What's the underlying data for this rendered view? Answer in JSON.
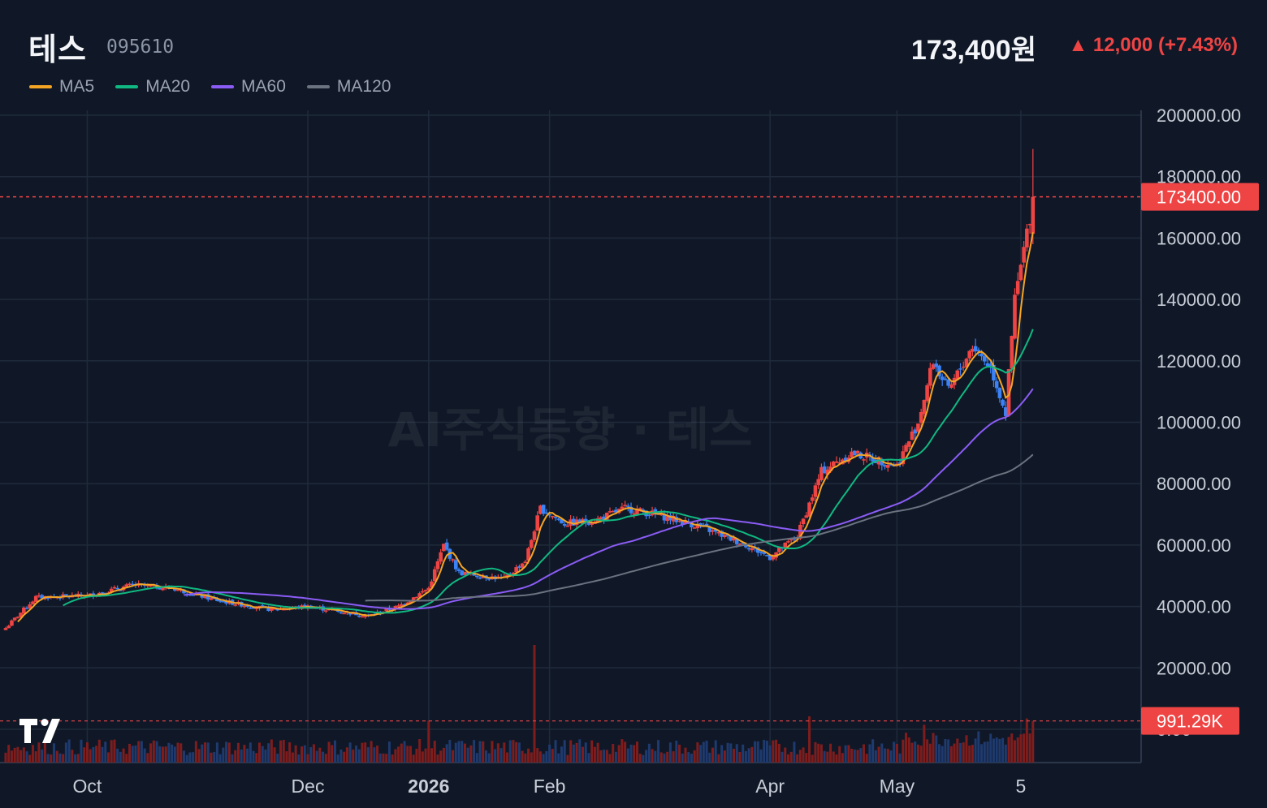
{
  "header": {
    "name": "테스",
    "code": "095610",
    "price": "173,400원",
    "change": "▲ 12,000 (+7.43%)"
  },
  "legend": [
    {
      "label": "MA5",
      "color": "#f5a524"
    },
    {
      "label": "MA20",
      "color": "#10b981"
    },
    {
      "label": "MA60",
      "color": "#8b5cf6"
    },
    {
      "label": "MA120",
      "color": "#6b7280"
    }
  ],
  "watermark": "AI주식동향 · 테스",
  "colors": {
    "background": "#101827",
    "grid": "#1f2a3a",
    "up": "#ef4444",
    "down": "#3b82f6",
    "up_volume": "#7f1d1d",
    "down_volume": "#1e3a6e",
    "axis_text": "#c9ced8"
  },
  "chart_data": {
    "type": "candlestick",
    "price_axis": {
      "ylim": [
        0,
        200000
      ],
      "ticks": [
        "200000.00",
        "180000.00",
        "160000.00",
        "140000.00",
        "120000.00",
        "100000.00",
        "80000.00",
        "60000.00",
        "40000.00",
        "20000.00",
        "0.00"
      ],
      "last_price_label": "173400.00",
      "last_price": 173400
    },
    "volume_axis": {
      "last_volume_label": "991.29K",
      "last_volume": 991290
    },
    "x_axis": {
      "labels": [
        {
          "text": "Oct",
          "index": 27,
          "bold": false
        },
        {
          "text": "Dec",
          "index": 100,
          "bold": false
        },
        {
          "text": "2026",
          "index": 140,
          "bold": true
        },
        {
          "text": "Feb",
          "index": 180,
          "bold": false
        },
        {
          "text": "Apr",
          "index": 253,
          "bold": false
        },
        {
          "text": "May",
          "index": 295,
          "bold": false
        },
        {
          "text": "5",
          "index": 336,
          "bold": false
        }
      ]
    },
    "candles_summary": "daily OHLC from Sep 2025 to May 2026",
    "key_points": [
      {
        "index": 0,
        "close": 33000
      },
      {
        "index": 10,
        "close": 43000
      },
      {
        "index": 27,
        "close": 43500
      },
      {
        "index": 42,
        "close": 47000
      },
      {
        "index": 55,
        "close": 46000
      },
      {
        "index": 70,
        "close": 42000
      },
      {
        "index": 88,
        "close": 39000
      },
      {
        "index": 100,
        "close": 40000
      },
      {
        "index": 120,
        "close": 37000
      },
      {
        "index": 130,
        "close": 40000
      },
      {
        "index": 140,
        "close": 46000
      },
      {
        "index": 145,
        "close": 60000
      },
      {
        "index": 150,
        "close": 51000
      },
      {
        "index": 165,
        "close": 49000
      },
      {
        "index": 172,
        "close": 55000
      },
      {
        "index": 177,
        "close": 72000
      },
      {
        "index": 185,
        "close": 67000
      },
      {
        "index": 195,
        "close": 68000
      },
      {
        "index": 205,
        "close": 72000
      },
      {
        "index": 215,
        "close": 70000
      },
      {
        "index": 230,
        "close": 66000
      },
      {
        "index": 245,
        "close": 60000
      },
      {
        "index": 253,
        "close": 56000
      },
      {
        "index": 262,
        "close": 63000
      },
      {
        "index": 270,
        "close": 84000
      },
      {
        "index": 280,
        "close": 90000
      },
      {
        "index": 295,
        "close": 86000
      },
      {
        "index": 302,
        "close": 100000
      },
      {
        "index": 307,
        "close": 120000
      },
      {
        "index": 312,
        "close": 110000
      },
      {
        "index": 320,
        "close": 125000
      },
      {
        "index": 326,
        "close": 118000
      },
      {
        "index": 331,
        "close": 103000
      },
      {
        "index": 334,
        "close": 140000
      },
      {
        "index": 338,
        "close": 161400
      },
      {
        "index": 340,
        "close": 173400
      }
    ],
    "volume_peaks": [
      {
        "index": 175,
        "volume": 2800000
      },
      {
        "index": 140,
        "volume": 1000000
      },
      {
        "index": 266,
        "volume": 1100000
      },
      {
        "index": 304,
        "volume": 900000
      },
      {
        "index": 338,
        "volume": 1050000
      },
      {
        "index": 340,
        "volume": 991290
      }
    ]
  }
}
